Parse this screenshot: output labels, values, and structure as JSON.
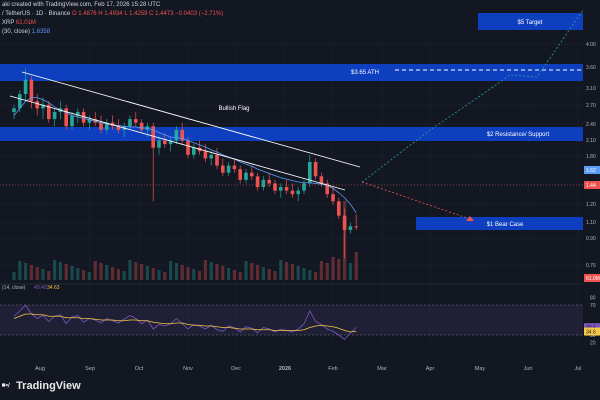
{
  "header": {
    "line1": "aki created with TradingView.com, Feb 17, 2026 15:28 UTC",
    "line2_symbol": "/ TetherUS · 1D · Binance",
    "line2_o": "O 1.4876",
    "line2_h": "H 1.4934",
    "line2_l": "L 1.4259",
    "line2_c": "C 1.4473",
    "line2_chg": "−0.0403 (−2.71%)",
    "line3_label": "XRP",
    "line3_value": "61.01M",
    "line4_label": "(30, close)",
    "line4_value": "1.6358"
  },
  "brand": "TradingView",
  "colors": {
    "background": "#131722",
    "blue_zone": "#0d3fbf",
    "up": "#26a69a",
    "down": "#ef5350",
    "channel": "#ffffff",
    "ma": "#5b9cf6",
    "projection_up": "#26a69a",
    "projection_down": "#ef5350",
    "rsi_line": "#7e57c2",
    "rsi_ma": "#f7c948"
  },
  "chart_data": {
    "type": "candlestick",
    "xaxis_ticks": [
      "Aug",
      "Sep",
      "Oct",
      "Nov",
      "Dec",
      "2026",
      "Feb",
      "Mar",
      "Apr",
      "May",
      "Jun",
      "Jul"
    ],
    "yaxis_ticks": [
      "4.00",
      "3.60",
      "3.10",
      "2.70",
      "2.40",
      "2.10",
      "1.80",
      "1.40",
      "1.20",
      "1.10",
      "0.90",
      "0.76"
    ],
    "price_tags": [
      "1.62",
      "1.44",
      "61.0M"
    ],
    "rsi": {
      "label": "(14, close)",
      "value1": "40.40",
      "value2": "34.63",
      "ticks": [
        "80",
        "70",
        "30",
        "20"
      ],
      "tags": [
        "40.4",
        "34.6"
      ]
    },
    "annotations": {
      "bullish_flag": "Bullish Flag",
      "target": "$5 Target",
      "ath": "$3.65 ATH",
      "resistance": "$2 Resistance/ Support",
      "bear_case": "$1 Bear Case"
    },
    "candles": [
      [
        3.05,
        3.15,
        2.95,
        3.1
      ],
      [
        3.1,
        3.35,
        3.05,
        3.3
      ],
      [
        3.3,
        3.66,
        3.2,
        3.5
      ],
      [
        3.5,
        3.55,
        3.1,
        3.2
      ],
      [
        3.2,
        3.3,
        3.0,
        3.1
      ],
      [
        3.1,
        3.25,
        2.95,
        3.15
      ],
      [
        3.15,
        3.2,
        2.9,
        2.95
      ],
      [
        2.95,
        3.1,
        2.85,
        3.05
      ],
      [
        3.05,
        3.2,
        2.95,
        3.1
      ],
      [
        3.1,
        3.15,
        2.8,
        2.85
      ],
      [
        2.85,
        3.05,
        2.8,
        3.0
      ],
      [
        3.0,
        3.1,
        2.9,
        3.05
      ],
      [
        3.05,
        3.1,
        2.85,
        2.9
      ],
      [
        2.9,
        3.0,
        2.8,
        2.95
      ],
      [
        2.95,
        3.05,
        2.85,
        2.9
      ],
      [
        2.9,
        3.0,
        2.75,
        2.8
      ],
      [
        2.8,
        2.95,
        2.75,
        2.9
      ],
      [
        2.9,
        3.0,
        2.8,
        2.85
      ],
      [
        2.85,
        2.95,
        2.75,
        2.8
      ],
      [
        2.8,
        2.9,
        2.7,
        2.85
      ],
      [
        2.85,
        3.0,
        2.8,
        2.95
      ],
      [
        2.95,
        3.05,
        2.85,
        2.9
      ],
      [
        2.9,
        2.95,
        2.75,
        2.8
      ],
      [
        2.8,
        2.9,
        2.7,
        2.85
      ],
      [
        2.85,
        2.9,
        1.8,
        2.55
      ],
      [
        2.55,
        2.7,
        2.45,
        2.65
      ],
      [
        2.65,
        2.75,
        2.55,
        2.6
      ],
      [
        2.6,
        2.7,
        2.5,
        2.65
      ],
      [
        2.65,
        2.85,
        2.6,
        2.8
      ],
      [
        2.8,
        2.9,
        2.6,
        2.65
      ],
      [
        2.65,
        2.7,
        2.4,
        2.45
      ],
      [
        2.45,
        2.6,
        2.4,
        2.55
      ],
      [
        2.55,
        2.65,
        2.45,
        2.5
      ],
      [
        2.5,
        2.6,
        2.35,
        2.4
      ],
      [
        2.4,
        2.5,
        2.3,
        2.45
      ],
      [
        2.45,
        2.55,
        2.25,
        2.3
      ],
      [
        2.3,
        2.4,
        2.15,
        2.2
      ],
      [
        2.2,
        2.35,
        2.15,
        2.3
      ],
      [
        2.3,
        2.4,
        2.2,
        2.25
      ],
      [
        2.25,
        2.3,
        2.05,
        2.1
      ],
      [
        2.1,
        2.25,
        2.05,
        2.2
      ],
      [
        2.2,
        2.3,
        2.1,
        2.15
      ],
      [
        2.15,
        2.2,
        1.95,
        2.0
      ],
      [
        2.0,
        2.15,
        1.95,
        2.1
      ],
      [
        2.1,
        2.2,
        2.0,
        2.05
      ],
      [
        2.05,
        2.1,
        1.9,
        1.95
      ],
      [
        1.95,
        2.05,
        1.85,
        2.0
      ],
      [
        2.0,
        2.1,
        1.9,
        1.95
      ],
      [
        1.95,
        2.05,
        1.85,
        1.9
      ],
      [
        1.9,
        2.0,
        1.8,
        1.95
      ],
      [
        1.95,
        2.1,
        1.9,
        2.05
      ],
      [
        2.05,
        2.45,
        2.0,
        2.35
      ],
      [
        2.35,
        2.4,
        2.1,
        2.15
      ],
      [
        2.15,
        2.2,
        2.0,
        2.05
      ],
      [
        2.05,
        2.1,
        1.85,
        1.9
      ],
      [
        1.9,
        2.0,
        1.75,
        1.8
      ],
      [
        1.8,
        1.85,
        1.55,
        1.6
      ],
      [
        1.6,
        1.7,
        1.0,
        1.4
      ],
      [
        1.4,
        1.5,
        1.35,
        1.45
      ],
      [
        1.45,
        1.62,
        1.4,
        1.44
      ]
    ],
    "ma_values": [
      3.0,
      3.1,
      3.2,
      3.25,
      3.25,
      3.22,
      3.18,
      3.12,
      3.08,
      3.04,
      3.0,
      2.98,
      2.96,
      2.94,
      2.92,
      2.9,
      2.88,
      2.87,
      2.86,
      2.85,
      2.84,
      2.84,
      2.83,
      2.82,
      2.8,
      2.76,
      2.73,
      2.7,
      2.69,
      2.68,
      2.65,
      2.62,
      2.59,
      2.56,
      2.52,
      2.49,
      2.45,
      2.42,
      2.39,
      2.35,
      2.32,
      2.29,
      2.25,
      2.22,
      2.19,
      2.16,
      2.13,
      2.11,
      2.09,
      2.07,
      2.06,
      2.06,
      2.05,
      2.04,
      2.02,
      1.98,
      1.92,
      1.85,
      1.76,
      1.64
    ],
    "rsi_values": [
      55,
      62,
      70,
      58,
      52,
      56,
      48,
      55,
      57,
      45,
      54,
      56,
      47,
      52,
      50,
      46,
      52,
      49,
      46,
      51,
      56,
      52,
      45,
      50,
      38,
      44,
      42,
      45,
      52,
      45,
      38,
      44,
      42,
      38,
      43,
      37,
      35,
      42,
      40,
      34,
      41,
      39,
      33,
      40,
      38,
      34,
      38,
      36,
      34,
      38,
      45,
      62,
      48,
      44,
      38,
      35,
      30,
      24,
      33,
      40
    ],
    "rsi_ma_values": [
      52,
      55,
      58,
      58,
      57,
      57,
      55,
      55,
      55,
      53,
      53,
      53,
      52,
      52,
      51,
      50,
      50,
      50,
      49,
      49,
      50,
      50,
      49,
      49,
      47,
      46,
      45,
      45,
      46,
      46,
      44,
      43,
      43,
      42,
      42,
      41,
      40,
      40,
      39,
      38,
      38,
      38,
      37,
      37,
      37,
      36,
      36,
      36,
      36,
      36,
      37,
      40,
      42,
      43,
      42,
      41,
      39,
      36,
      34,
      35
    ]
  }
}
